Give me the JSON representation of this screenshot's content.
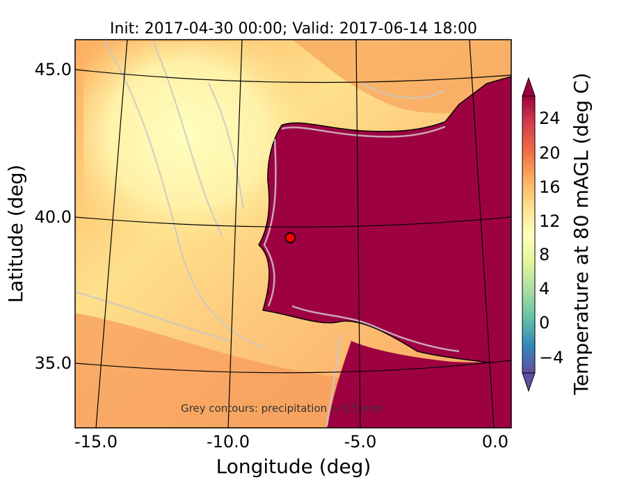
{
  "title": "Init: 2017-04-30 00:00; Valid: 2017-06-14 18:00",
  "xlabel": "Longitude (deg)",
  "ylabel": "Latitude (deg)",
  "x_ticks": [
    "-15.0",
    "-10.0",
    "-5.0",
    "0.0"
  ],
  "y_ticks": [
    "45.0",
    "40.0",
    "35.0"
  ],
  "annotation": "Grey contours: precipitation > 0.5 mm",
  "colorbar": {
    "label": "Temperature at 80 mAGL (deg C)",
    "ticks": [
      "24",
      "20",
      "16",
      "12",
      "8",
      "4",
      "0",
      "−4"
    ],
    "extend": "both",
    "colormap": "Spectral_r",
    "colors": [
      "#5e4fa2",
      "#3288bd",
      "#66c2a5",
      "#abdda4",
      "#e6f598",
      "#ffffbf",
      "#fee08b",
      "#fdae61",
      "#f46d43",
      "#d53e4f",
      "#9e0142"
    ]
  },
  "map": {
    "lon_range": [
      -16,
      0.3
    ],
    "lat_range": [
      32.5,
      46.2
    ],
    "marker": {
      "lon": -7.7,
      "lat": 39.3,
      "color": "#ff0000"
    },
    "land_color": "#9e0142",
    "sea_color": "#fdb96a",
    "gridline_color": "#000000",
    "contour_color": "#c8c8c8"
  }
}
